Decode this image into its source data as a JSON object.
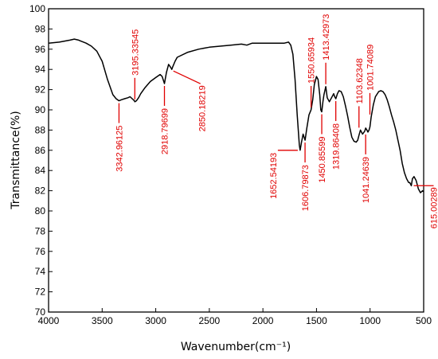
{
  "chart_data": {
    "type": "line",
    "xlabel": "Wavenumber(cm⁻¹)",
    "ylabel": "Transmittance(%)",
    "xlim": [
      4000,
      500
    ],
    "ylim": [
      70,
      100
    ],
    "x_reversed": true,
    "x_ticks": [
      4000,
      3500,
      3000,
      2500,
      2000,
      1500,
      1000,
      500
    ],
    "y_ticks": [
      70,
      72,
      74,
      76,
      78,
      80,
      82,
      84,
      86,
      88,
      90,
      92,
      94,
      96,
      98,
      100
    ],
    "grid": false,
    "line_color": "#000000",
    "annotation_color": "#e00000",
    "series": [
      {
        "x": [
          4000,
          3900,
          3850,
          3800,
          3760,
          3720,
          3700,
          3650,
          3600,
          3550,
          3500,
          3450,
          3400,
          3370,
          3342.96,
          3320,
          3290,
          3260,
          3240,
          3220,
          3200,
          3195.34,
          3180,
          3160,
          3140,
          3100,
          3050,
          3000,
          2960,
          2940,
          2918.8,
          2900,
          2880,
          2860,
          2850.18,
          2840,
          2820,
          2800,
          2700,
          2600,
          2500,
          2400,
          2300,
          2200,
          2150,
          2100,
          2000,
          1900,
          1800,
          1760,
          1740,
          1720,
          1700,
          1680,
          1660,
          1652.54,
          1640,
          1625,
          1606.8,
          1590,
          1570,
          1550.66,
          1535,
          1520,
          1500,
          1485,
          1470,
          1460,
          1450.86,
          1440,
          1430,
          1413.43,
          1400,
          1380,
          1360,
          1340,
          1330,
          1319.86,
          1305,
          1290,
          1270,
          1250,
          1230,
          1210,
          1190,
          1170,
          1150,
          1130,
          1115,
          1103.62,
          1090,
          1070,
          1050,
          1041.25,
          1030,
          1020,
          1010,
          1001.74,
          990,
          970,
          950,
          920,
          900,
          880,
          860,
          840,
          820,
          800,
          780,
          760,
          740,
          720,
          700,
          680,
          660,
          640,
          630,
          620,
          615.0,
          605,
          590,
          570,
          550,
          530,
          510,
          500
        ],
        "y": [
          96.6,
          96.7,
          96.8,
          96.9,
          97.0,
          96.9,
          96.8,
          96.6,
          96.3,
          95.8,
          94.8,
          93.0,
          91.5,
          91.1,
          90.9,
          91.0,
          91.1,
          91.2,
          91.3,
          91.1,
          90.9,
          90.8,
          90.9,
          91.2,
          91.6,
          92.2,
          92.8,
          93.2,
          93.5,
          93.3,
          92.6,
          93.7,
          94.5,
          94.2,
          94.0,
          94.3,
          94.8,
          95.2,
          95.7,
          96.0,
          96.2,
          96.3,
          96.4,
          96.5,
          96.4,
          96.6,
          96.6,
          96.6,
          96.6,
          96.7,
          96.4,
          95.5,
          93.0,
          89.5,
          86.5,
          86.0,
          86.8,
          87.6,
          87.0,
          88.2,
          89.5,
          90.0,
          91.0,
          92.5,
          93.3,
          93.0,
          91.5,
          90.0,
          89.8,
          90.8,
          91.5,
          92.3,
          91.2,
          90.8,
          91.2,
          91.6,
          91.3,
          91.1,
          91.6,
          91.9,
          91.8,
          91.3,
          90.4,
          89.4,
          88.3,
          87.3,
          86.9,
          86.8,
          87.0,
          87.5,
          88.0,
          87.6,
          87.9,
          88.2,
          88.0,
          87.8,
          88.0,
          88.3,
          89.3,
          90.5,
          91.3,
          91.8,
          91.9,
          91.8,
          91.5,
          91.0,
          90.3,
          89.5,
          88.8,
          88.0,
          87.0,
          86.0,
          84.7,
          83.8,
          83.2,
          82.8,
          82.8,
          82.6,
          82.5,
          83.2,
          83.4,
          83.0,
          82.2,
          81.8,
          82.0,
          81.9
        ]
      }
    ],
    "annotations": [
      {
        "text": "3342.96125",
        "x": 3342.96,
        "y": 90.9
      },
      {
        "text": "3195.33545",
        "x": 3195.34,
        "y": 90.8
      },
      {
        "text": "2918.79699",
        "x": 2918.8,
        "y": 92.6
      },
      {
        "text": "2850.18219",
        "x": 2850.18,
        "y": 94.0
      },
      {
        "text": "1652.54193",
        "x": 1652.54,
        "y": 86.0
      },
      {
        "text": "1606.79873",
        "x": 1606.8,
        "y": 87.0
      },
      {
        "text": "1550.65934",
        "x": 1550.66,
        "y": 90.0
      },
      {
        "text": "1450.85599",
        "x": 1450.86,
        "y": 89.8
      },
      {
        "text": "1413.42973",
        "x": 1413.43,
        "y": 92.3
      },
      {
        "text": "1319.86408",
        "x": 1319.86,
        "y": 91.1
      },
      {
        "text": "1103.62348",
        "x": 1103.62,
        "y": 88.0
      },
      {
        "text": "1041.24639",
        "x": 1041.25,
        "y": 87.8
      },
      {
        "text": "1001.74089",
        "x": 1001.74,
        "y": 89.3
      },
      {
        "text": "615.00289",
        "x": 615.0,
        "y": 82.5
      }
    ]
  }
}
